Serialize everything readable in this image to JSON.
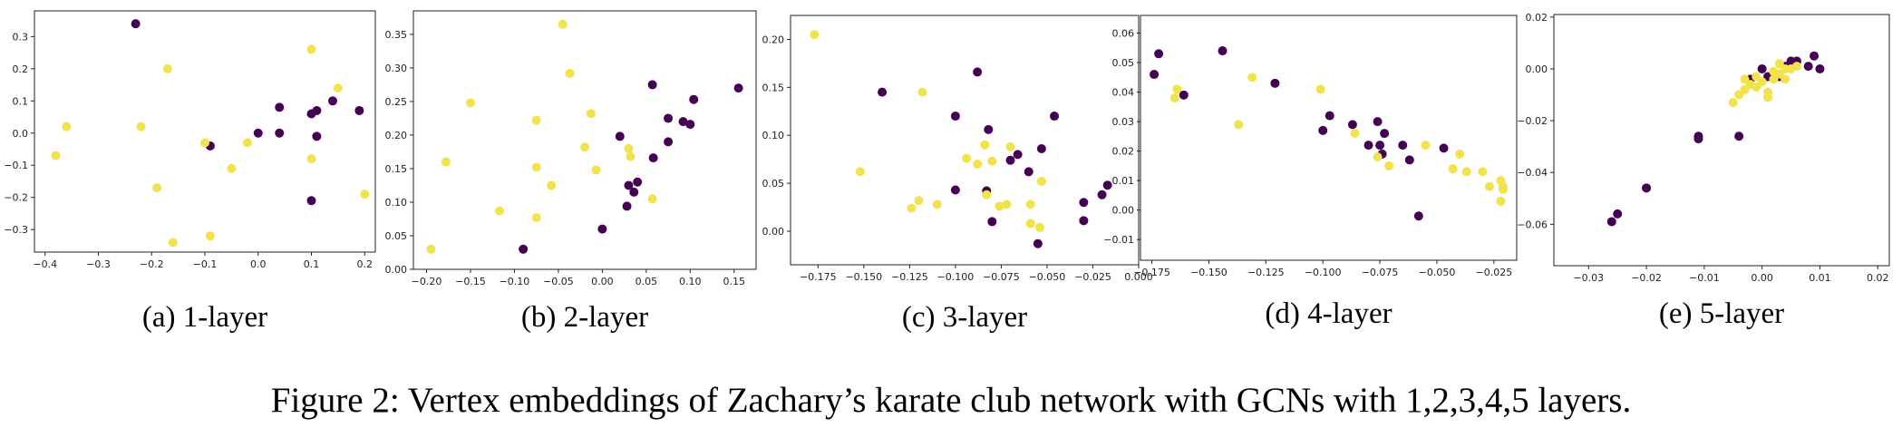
{
  "caption": "Figure 2: Vertex embeddings of Zachary’s karate club network with GCNs with 1,2,3,4,5 layers.",
  "colors": {
    "class_a": "#440154",
    "class_b": "#f2e34d"
  },
  "chart_data": [
    {
      "type": "scatter",
      "subcaption": "(a) 1-layer",
      "xlim": [
        -0.42,
        0.22
      ],
      "ylim": [
        -0.37,
        0.38
      ],
      "xticks": [
        -0.4,
        -0.3,
        -0.2,
        -0.1,
        0.0,
        0.1,
        0.2
      ],
      "xtick_labels": [
        "−0.4",
        "−0.3",
        "−0.2",
        "−0.1",
        "0.0",
        "0.1",
        "0.2"
      ],
      "yticks": [
        -0.3,
        -0.2,
        -0.1,
        0.0,
        0.1,
        0.2,
        0.3
      ],
      "ytick_labels": [
        "−0.3",
        "−0.2",
        "−0.1",
        "0.0",
        "0.1",
        "0.2",
        "0.3"
      ],
      "series": [
        {
          "color": "#440154",
          "points": [
            [
              -0.23,
              0.34
            ],
            [
              0.0,
              0.0
            ],
            [
              0.04,
              0.08
            ],
            [
              0.04,
              0.0
            ],
            [
              0.1,
              0.06
            ],
            [
              0.11,
              0.07
            ],
            [
              0.14,
              0.1
            ],
            [
              0.19,
              0.07
            ],
            [
              0.11,
              -0.01
            ],
            [
              0.1,
              -0.21
            ],
            [
              -0.09,
              -0.04
            ]
          ]
        },
        {
          "color": "#f2e34d",
          "points": [
            [
              -0.17,
              0.2
            ],
            [
              0.1,
              0.26
            ],
            [
              0.15,
              0.14
            ],
            [
              -0.36,
              0.02
            ],
            [
              -0.22,
              0.02
            ],
            [
              -0.1,
              -0.03
            ],
            [
              -0.02,
              -0.03
            ],
            [
              -0.38,
              -0.07
            ],
            [
              -0.05,
              -0.11
            ],
            [
              -0.19,
              -0.17
            ],
            [
              0.1,
              -0.08
            ],
            [
              0.2,
              -0.19
            ],
            [
              -0.16,
              -0.34
            ],
            [
              -0.09,
              -0.32
            ]
          ]
        }
      ]
    },
    {
      "type": "scatter",
      "subcaption": "(b) 2-layer",
      "xlim": [
        -0.215,
        0.175
      ],
      "ylim": [
        0.0,
        0.385
      ],
      "xticks": [
        -0.2,
        -0.15,
        -0.1,
        -0.05,
        0.0,
        0.05,
        0.1,
        0.15
      ],
      "xtick_labels": [
        "−0.20",
        "−0.15",
        "−0.10",
        "−0.05",
        "0.00",
        "0.05",
        "0.10",
        "0.15"
      ],
      "yticks": [
        0.0,
        0.05,
        0.1,
        0.15,
        0.2,
        0.25,
        0.3,
        0.35
      ],
      "ytick_labels": [
        "0.00",
        "0.05",
        "0.10",
        "0.15",
        "0.20",
        "0.25",
        "0.30",
        "0.35"
      ],
      "series": [
        {
          "color": "#440154",
          "points": [
            [
              0.155,
              0.27
            ],
            [
              0.057,
              0.275
            ],
            [
              0.104,
              0.253
            ],
            [
              0.075,
              0.225
            ],
            [
              0.092,
              0.22
            ],
            [
              0.1,
              0.216
            ],
            [
              0.02,
              0.198
            ],
            [
              0.075,
              0.19
            ],
            [
              0.058,
              0.166
            ],
            [
              0.03,
              0.125
            ],
            [
              0.04,
              0.13
            ],
            [
              0.036,
              0.115
            ],
            [
              0.028,
              0.094
            ],
            [
              0.0,
              0.06
            ],
            [
              -0.09,
              0.03
            ]
          ]
        },
        {
          "color": "#f2e34d",
          "points": [
            [
              -0.045,
              0.365
            ],
            [
              -0.037,
              0.292
            ],
            [
              -0.15,
              0.248
            ],
            [
              -0.013,
              0.232
            ],
            [
              -0.075,
              0.222
            ],
            [
              -0.02,
              0.182
            ],
            [
              0.03,
              0.18
            ],
            [
              0.032,
              0.168
            ],
            [
              -0.178,
              0.16
            ],
            [
              -0.075,
              0.152
            ],
            [
              -0.007,
              0.148
            ],
            [
              -0.058,
              0.125
            ],
            [
              0.057,
              0.105
            ],
            [
              -0.117,
              0.087
            ],
            [
              -0.075,
              0.077
            ],
            [
              -0.195,
              0.03
            ]
          ]
        }
      ]
    },
    {
      "type": "scatter",
      "subcaption": "(c) 3-layer",
      "xlim": [
        -0.19,
        0.0
      ],
      "ylim": [
        -0.035,
        0.225
      ],
      "xticks": [
        -0.175,
        -0.15,
        -0.125,
        -0.1,
        -0.075,
        -0.05,
        -0.025,
        0.0
      ],
      "xtick_labels": [
        "−0.175",
        "−0.150",
        "−0.125",
        "−0.100",
        "−0.075",
        "−0.050",
        "−0.025",
        "0.000"
      ],
      "yticks": [
        0.0,
        0.05,
        0.1,
        0.15,
        0.2
      ],
      "ytick_labels": [
        "0.00",
        "0.05",
        "0.10",
        "0.15",
        "0.20"
      ],
      "series": [
        {
          "color": "#440154",
          "points": [
            [
              -0.088,
              0.166
            ],
            [
              -0.14,
              0.145
            ],
            [
              -0.1,
              0.12
            ],
            [
              -0.046,
              0.12
            ],
            [
              -0.082,
              0.106
            ],
            [
              -0.066,
              0.08
            ],
            [
              -0.053,
              0.086
            ],
            [
              -0.07,
              0.074
            ],
            [
              -0.06,
              0.062
            ],
            [
              -0.083,
              0.042
            ],
            [
              -0.1,
              0.043
            ],
            [
              -0.03,
              0.03
            ],
            [
              -0.02,
              0.038
            ],
            [
              -0.017,
              0.048
            ],
            [
              -0.08,
              0.01
            ],
            [
              -0.03,
              0.011
            ],
            [
              -0.055,
              -0.013
            ]
          ]
        },
        {
          "color": "#f2e34d",
          "points": [
            [
              -0.177,
              0.205
            ],
            [
              -0.118,
              0.145
            ],
            [
              -0.094,
              0.076
            ],
            [
              -0.088,
              0.07
            ],
            [
              -0.084,
              0.09
            ],
            [
              -0.07,
              0.088
            ],
            [
              -0.08,
              0.073
            ],
            [
              -0.152,
              0.062
            ],
            [
              -0.053,
              0.052
            ],
            [
              -0.083,
              0.038
            ],
            [
              -0.12,
              0.032
            ],
            [
              -0.11,
              0.028
            ],
            [
              -0.124,
              0.024
            ],
            [
              -0.072,
              0.028
            ],
            [
              -0.076,
              0.026
            ],
            [
              -0.059,
              0.028
            ],
            [
              -0.059,
              0.008
            ],
            [
              -0.054,
              0.004
            ]
          ]
        }
      ]
    },
    {
      "type": "scatter",
      "subcaption": "(d) 4-layer",
      "xlim": [
        -0.18,
        -0.015
      ],
      "ylim": [
        -0.017,
        0.066
      ],
      "xticks": [
        -0.175,
        -0.15,
        -0.125,
        -0.1,
        -0.075,
        -0.05,
        -0.025
      ],
      "xtick_labels": [
        "−0.175",
        "−0.150",
        "−0.125",
        "−0.100",
        "−0.075",
        "−0.050",
        "−0.025"
      ],
      "yticks": [
        -0.01,
        0.0,
        0.01,
        0.02,
        0.03,
        0.04,
        0.05,
        0.06
      ],
      "ytick_labels": [
        "−0.01",
        "0.00",
        "0.01",
        "0.02",
        "0.03",
        "0.04",
        "0.05",
        "0.06"
      ],
      "series": [
        {
          "color": "#440154",
          "points": [
            [
              -0.172,
              0.053
            ],
            [
              -0.144,
              0.054
            ],
            [
              -0.174,
              0.046
            ],
            [
              -0.121,
              0.043
            ],
            [
              -0.161,
              0.039
            ],
            [
              -0.097,
              0.032
            ],
            [
              -0.087,
              0.029
            ],
            [
              -0.1,
              0.027
            ],
            [
              -0.076,
              0.03
            ],
            [
              -0.073,
              0.026
            ],
            [
              -0.08,
              0.022
            ],
            [
              -0.075,
              0.022
            ],
            [
              -0.065,
              0.022
            ],
            [
              -0.074,
              0.019
            ],
            [
              -0.062,
              0.017
            ],
            [
              -0.047,
              0.021
            ],
            [
              -0.058,
              -0.002
            ]
          ]
        },
        {
          "color": "#f2e34d",
          "points": [
            [
              -0.164,
              0.041
            ],
            [
              -0.165,
              0.038
            ],
            [
              -0.131,
              0.045
            ],
            [
              -0.101,
              0.041
            ],
            [
              -0.137,
              0.029
            ],
            [
              -0.086,
              0.026
            ],
            [
              -0.076,
              0.018
            ],
            [
              -0.071,
              0.015
            ],
            [
              -0.055,
              0.022
            ],
            [
              -0.04,
              0.019
            ],
            [
              -0.043,
              0.014
            ],
            [
              -0.037,
              0.013
            ],
            [
              -0.03,
              0.013
            ],
            [
              -0.022,
              0.01
            ],
            [
              -0.021,
              0.008
            ],
            [
              -0.021,
              0.007
            ],
            [
              -0.027,
              0.008
            ],
            [
              -0.022,
              0.003
            ]
          ]
        }
      ]
    },
    {
      "type": "scatter",
      "subcaption": "(e) 5-layer",
      "xlim": [
        -0.036,
        0.022
      ],
      "ylim": [
        -0.076,
        0.021
      ],
      "xticks": [
        -0.03,
        -0.02,
        -0.01,
        0.0,
        0.01,
        0.02
      ],
      "xtick_labels": [
        "−0.03",
        "−0.02",
        "−0.01",
        "0.00",
        "0.01",
        "0.02"
      ],
      "yticks": [
        -0.06,
        -0.04,
        -0.02,
        0.0,
        0.02
      ],
      "ytick_labels": [
        "−0.06",
        "−0.04",
        "−0.02",
        "0.00",
        "0.02"
      ],
      "series": [
        {
          "color": "#440154",
          "points": [
            [
              -0.026,
              -0.059
            ],
            [
              -0.025,
              -0.056
            ],
            [
              -0.02,
              -0.046
            ],
            [
              -0.011,
              -0.026
            ],
            [
              -0.011,
              -0.027
            ],
            [
              -0.004,
              -0.026
            ],
            [
              0.009,
              0.005
            ],
            [
              0.006,
              0.003
            ],
            [
              0.005,
              0.002
            ],
            [
              0.008,
              0.001
            ],
            [
              0.01,
              0.0
            ],
            [
              0.0,
              0.0
            ],
            [
              0.001,
              -0.003
            ],
            [
              0.003,
              -0.003
            ],
            [
              -0.002,
              -0.004
            ],
            [
              0.004,
              0.001
            ],
            [
              0.005,
              0.003
            ]
          ]
        },
        {
          "color": "#f2e34d",
          "points": [
            [
              -0.005,
              -0.013
            ],
            [
              -0.004,
              -0.01
            ],
            [
              -0.003,
              -0.008
            ],
            [
              -0.002,
              -0.006
            ],
            [
              -0.001,
              -0.007
            ],
            [
              0.0,
              -0.005
            ],
            [
              0.001,
              -0.009
            ],
            [
              -0.003,
              -0.004
            ],
            [
              0.002,
              -0.004
            ],
            [
              0.003,
              -0.002
            ],
            [
              0.004,
              0.0
            ],
            [
              0.002,
              -0.001
            ],
            [
              0.003,
              0.002
            ],
            [
              0.005,
              0.0
            ],
            [
              0.006,
              0.001
            ],
            [
              0.001,
              -0.011
            ],
            [
              -0.001,
              -0.003
            ],
            [
              0.004,
              -0.004
            ]
          ]
        }
      ]
    }
  ]
}
